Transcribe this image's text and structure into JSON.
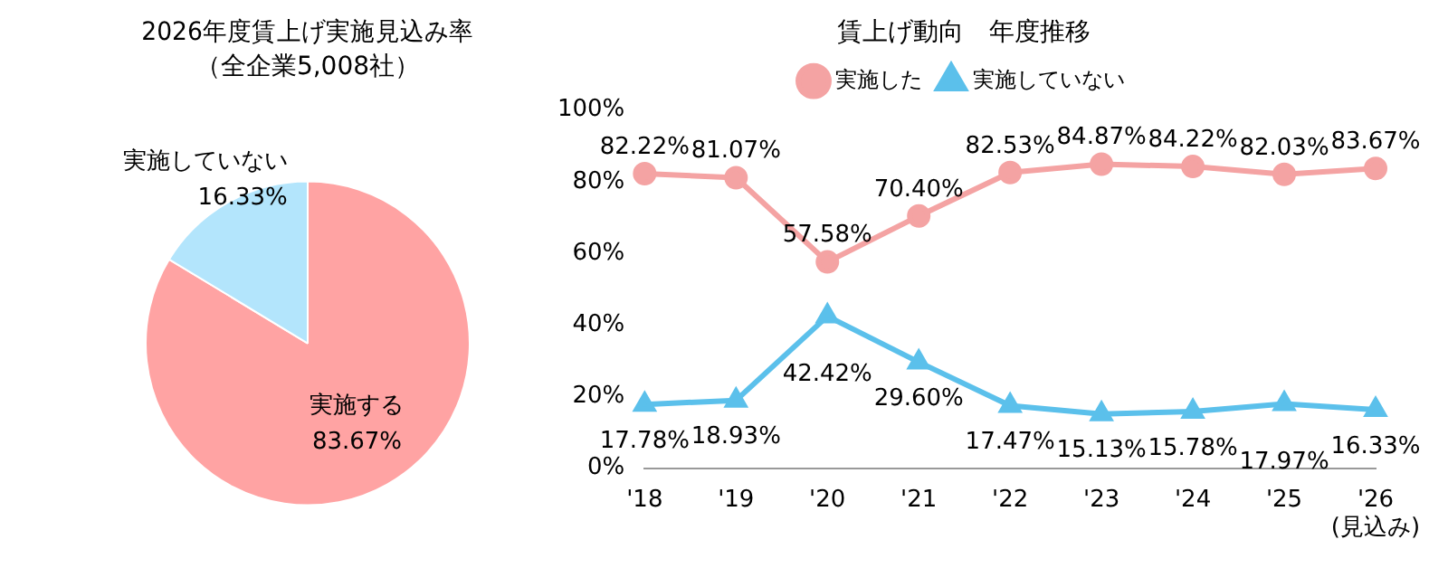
{
  "chart_data": [
    {
      "type": "pie",
      "title": "2026年度賃上げ実施見込み率",
      "subtitle": "（全企業5,008社）",
      "categories": [
        "実施する",
        "実施していない"
      ],
      "values": [
        83.67,
        16.33
      ],
      "colors": [
        "#ffa3a3",
        "#b3e5fc"
      ],
      "value_labels": [
        "83.67%",
        "16.33%"
      ],
      "legend": false
    },
    {
      "type": "line",
      "title": "賃上げ動向　年度推移",
      "categories": [
        "'18",
        "'19",
        "'20",
        "'21",
        "'22",
        "'23",
        "'24",
        "'25",
        "'26\n(見込み)"
      ],
      "ylim": [
        0,
        100
      ],
      "yticks": [
        {
          "value": 0,
          "label": "0%"
        },
        {
          "value": 20,
          "label": "20%"
        },
        {
          "value": 40,
          "label": "40%"
        },
        {
          "value": 60,
          "label": "60%"
        },
        {
          "value": 80,
          "label": "80%"
        },
        {
          "value": 100,
          "label": "100%"
        }
      ],
      "legend": "top",
      "series": [
        {
          "name": "実施した",
          "color": "#f4a3a3",
          "marker": "circle",
          "values": [
            82.22,
            81.07,
            57.58,
            70.4,
            82.53,
            84.87,
            84.22,
            82.03,
            83.67
          ],
          "value_labels": [
            "82.22%",
            "81.07%",
            "57.58%",
            "70.40%",
            "82.53%",
            "84.87%",
            "84.22%",
            "82.03%",
            "83.67%"
          ]
        },
        {
          "name": "実施していない",
          "color": "#5bc0eb",
          "marker": "triangle",
          "values": [
            17.78,
            18.93,
            42.42,
            29.6,
            17.47,
            15.13,
            15.78,
            17.97,
            16.33
          ],
          "value_labels": [
            "17.78%",
            "18.93%",
            "42.42%",
            "29.60%",
            "17.47%",
            "15.13%",
            "15.78%",
            "17.97%",
            "16.33%"
          ]
        }
      ]
    }
  ]
}
